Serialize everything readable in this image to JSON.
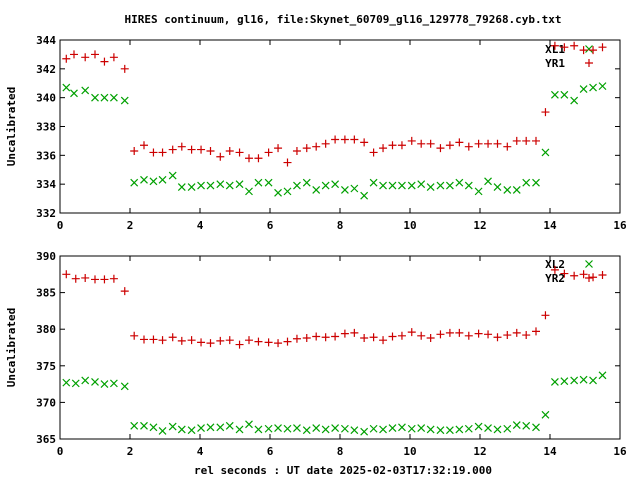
{
  "title": "HIRES continuum, gl16, file:Skynet_60709_gl16_129778_79268.cyb.txt",
  "xlabel": "rel seconds : UT date 2025-02-03T17:32:19.000",
  "colors": {
    "red": "#cc0000",
    "green": "#00a000",
    "axis": "#000000"
  },
  "chart_data": [
    {
      "type": "scatter",
      "ylabel": "Uncalibrated",
      "xlim": [
        0,
        16
      ],
      "ylim": [
        332,
        344
      ],
      "xticks": [
        0,
        2,
        4,
        6,
        8,
        10,
        12,
        14,
        16
      ],
      "yticks": [
        332,
        334,
        336,
        338,
        340,
        342,
        344
      ],
      "legend_position": "top-right",
      "series": [
        {
          "name": "XL1",
          "marker": "cross",
          "color": "#00a000",
          "x": [
            0.18,
            0.4,
            0.72,
            1.0,
            1.27,
            1.54,
            1.85,
            2.12,
            2.4,
            2.67,
            2.93,
            3.22,
            3.48,
            3.76,
            4.03,
            4.3,
            4.58,
            4.85,
            5.13,
            5.4,
            5.67,
            5.96,
            6.23,
            6.5,
            6.77,
            7.05,
            7.32,
            7.59,
            7.86,
            8.14,
            8.41,
            8.69,
            8.96,
            9.23,
            9.5,
            9.77,
            10.05,
            10.32,
            10.59,
            10.87,
            11.14,
            11.41,
            11.68,
            11.96,
            12.23,
            12.5,
            12.78,
            13.05,
            13.32,
            13.6,
            13.87,
            14.14,
            14.41,
            14.69,
            14.96,
            15.23,
            15.5
          ],
          "y": [
            340.7,
            340.3,
            340.5,
            340.0,
            340.0,
            340.0,
            339.8,
            334.1,
            334.3,
            334.2,
            334.3,
            334.6,
            333.8,
            333.8,
            333.9,
            333.9,
            334.0,
            333.9,
            334.0,
            333.5,
            334.1,
            334.1,
            333.4,
            333.5,
            333.9,
            334.1,
            333.6,
            333.9,
            334.0,
            333.6,
            333.7,
            333.2,
            334.1,
            333.9,
            333.9,
            333.9,
            333.9,
            334.0,
            333.8,
            333.9,
            333.9,
            334.1,
            333.9,
            333.5,
            334.2,
            333.8,
            333.6,
            333.6,
            334.1,
            334.1,
            336.2,
            340.2,
            340.2,
            339.8,
            340.6,
            340.7,
            340.8
          ]
        },
        {
          "name": "YR1",
          "marker": "plus",
          "color": "#cc0000",
          "x": [
            0.18,
            0.4,
            0.72,
            1.0,
            1.27,
            1.54,
            1.85,
            2.12,
            2.4,
            2.67,
            2.93,
            3.22,
            3.48,
            3.76,
            4.03,
            4.3,
            4.58,
            4.85,
            5.13,
            5.4,
            5.67,
            5.96,
            6.23,
            6.5,
            6.77,
            7.05,
            7.32,
            7.59,
            7.86,
            8.14,
            8.41,
            8.69,
            8.96,
            9.23,
            9.5,
            9.77,
            10.05,
            10.32,
            10.59,
            10.87,
            11.14,
            11.41,
            11.68,
            11.96,
            12.23,
            12.5,
            12.78,
            13.05,
            13.32,
            13.6,
            13.87,
            14.14,
            14.41,
            14.69,
            14.96,
            15.23,
            15.5
          ],
          "y": [
            342.7,
            343.0,
            342.8,
            343.0,
            342.5,
            342.8,
            342.0,
            336.3,
            336.7,
            336.2,
            336.2,
            336.4,
            336.6,
            336.4,
            336.4,
            336.3,
            335.9,
            336.3,
            336.2,
            335.8,
            335.8,
            336.2,
            336.5,
            335.5,
            336.3,
            336.5,
            336.6,
            336.8,
            337.1,
            337.1,
            337.1,
            336.9,
            336.2,
            336.5,
            336.7,
            336.7,
            337.0,
            336.8,
            336.8,
            336.5,
            336.7,
            336.9,
            336.6,
            336.8,
            336.8,
            336.8,
            336.6,
            337.0,
            337.0,
            337.0,
            339.0,
            343.6,
            343.5,
            343.6,
            343.3,
            343.3,
            343.5
          ]
        }
      ]
    },
    {
      "type": "scatter",
      "ylabel": "Uncalibrated",
      "xlim": [
        0,
        16
      ],
      "ylim": [
        365,
        390
      ],
      "xticks": [
        0,
        2,
        4,
        6,
        8,
        10,
        12,
        14,
        16
      ],
      "yticks": [
        365,
        370,
        375,
        380,
        385,
        390
      ],
      "legend_position": "top-right",
      "series": [
        {
          "name": "XL2",
          "marker": "cross",
          "color": "#00a000",
          "x": [
            0.18,
            0.45,
            0.72,
            1.0,
            1.27,
            1.54,
            1.85,
            2.12,
            2.4,
            2.67,
            2.93,
            3.22,
            3.48,
            3.76,
            4.03,
            4.3,
            4.58,
            4.85,
            5.13,
            5.4,
            5.67,
            5.96,
            6.23,
            6.5,
            6.77,
            7.05,
            7.32,
            7.59,
            7.86,
            8.14,
            8.41,
            8.69,
            8.96,
            9.23,
            9.5,
            9.77,
            10.05,
            10.32,
            10.59,
            10.87,
            11.14,
            11.41,
            11.68,
            11.96,
            12.23,
            12.5,
            12.78,
            13.05,
            13.32,
            13.6,
            13.87,
            14.14,
            14.41,
            14.69,
            14.96,
            15.23,
            15.5
          ],
          "y": [
            372.7,
            372.6,
            373.0,
            372.8,
            372.5,
            372.6,
            372.2,
            366.8,
            366.8,
            366.6,
            366.1,
            366.7,
            366.3,
            366.2,
            366.5,
            366.6,
            366.6,
            366.8,
            366.3,
            367.0,
            366.3,
            366.4,
            366.5,
            366.4,
            366.5,
            366.2,
            366.5,
            366.3,
            366.5,
            366.4,
            366.2,
            366.0,
            366.4,
            366.3,
            366.5,
            366.6,
            366.4,
            366.5,
            366.3,
            366.2,
            366.2,
            366.3,
            366.4,
            366.7,
            366.5,
            366.3,
            366.4,
            366.9,
            366.8,
            366.6,
            368.3,
            372.8,
            372.9,
            373.0,
            373.1,
            373.0,
            373.7
          ]
        },
        {
          "name": "YR2",
          "marker": "plus",
          "color": "#cc0000",
          "x": [
            0.18,
            0.45,
            0.72,
            1.0,
            1.27,
            1.54,
            1.85,
            2.12,
            2.4,
            2.67,
            2.93,
            3.22,
            3.48,
            3.76,
            4.03,
            4.3,
            4.58,
            4.85,
            5.13,
            5.4,
            5.67,
            5.96,
            6.23,
            6.5,
            6.77,
            7.05,
            7.32,
            7.59,
            7.86,
            8.14,
            8.41,
            8.69,
            8.96,
            9.23,
            9.5,
            9.77,
            10.05,
            10.32,
            10.59,
            10.87,
            11.14,
            11.41,
            11.68,
            11.96,
            12.23,
            12.5,
            12.78,
            13.05,
            13.32,
            13.6,
            13.87,
            14.14,
            14.41,
            14.69,
            14.96,
            15.23,
            15.5
          ],
          "y": [
            387.5,
            386.9,
            387.0,
            386.8,
            386.8,
            386.9,
            385.2,
            379.1,
            378.6,
            378.6,
            378.5,
            378.9,
            378.4,
            378.5,
            378.2,
            378.1,
            378.4,
            378.5,
            377.9,
            378.5,
            378.3,
            378.2,
            378.1,
            378.3,
            378.7,
            378.8,
            379.0,
            378.9,
            379.0,
            379.4,
            379.5,
            378.8,
            378.9,
            378.5,
            379.0,
            379.1,
            379.6,
            379.1,
            378.8,
            379.3,
            379.5,
            379.5,
            379.1,
            379.4,
            379.3,
            378.9,
            379.2,
            379.5,
            379.2,
            379.7,
            381.9,
            388.1,
            387.6,
            387.3,
            387.5,
            387.1,
            387.4
          ]
        }
      ]
    }
  ]
}
